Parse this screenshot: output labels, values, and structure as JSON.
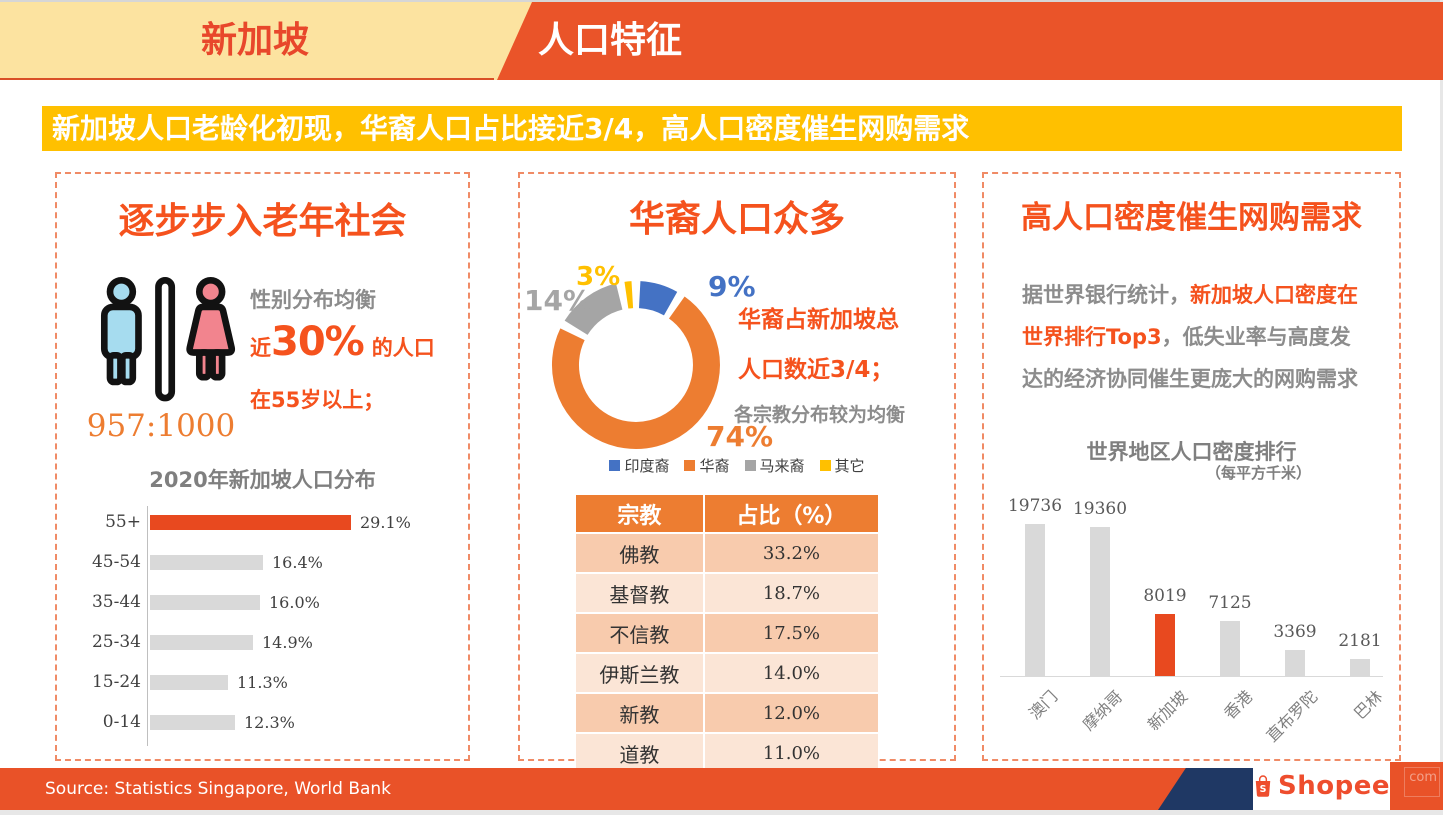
{
  "header": {
    "left_tab": "新加坡",
    "right_tab": "人口特征"
  },
  "banner": {
    "text": "新加坡人口老龄化初现，华裔人口占比接近3/4，高人口密度催生网购需求"
  },
  "panels": {
    "aging": {
      "title": "逐步步入老年社会",
      "gender_ratio": "957:1000",
      "balance_line": "性别分布均衡",
      "pct_prefix": "近",
      "pct_big": "30%",
      "pct_suffix": "的人口",
      "age_line": "在55岁以上；"
    },
    "ethnic": {
      "title": "华裔人口众多",
      "side_line1": "华裔占新加坡总",
      "side_line2": "人口数近3/4；",
      "side_line3": "各宗教分布较为均衡"
    },
    "density": {
      "title": "高人口密度催生网购需求",
      "para_line1_gray": "据世界银行统计，",
      "para_line1_orange": "新加坡人口密度在",
      "para_line2_orange": "世界排行Top3",
      "para_line2_gray": "，低失业率与高度发",
      "para_line3_gray": "达的经济协同催生更庞大的网购需求"
    }
  },
  "footer": {
    "source": "Source: Statistics Singapore, World Bank",
    "brand": "Shopee",
    "watermark": "com"
  },
  "icons": {
    "gender": "male-female-restroom-icons",
    "shopee": "shopee-bag-icon"
  },
  "colors": {
    "accent_orange": "#F5521D",
    "chart_orange": "#E8491F",
    "table_orange": "#ED7D31",
    "gold": "#FFC000",
    "blue": "#4472C4",
    "gray": "#A5A5A5",
    "bar_gray": "#D9D9D9",
    "header_orange": "#EA5429",
    "cream": "#FCE3A0",
    "navy": "#1F3864",
    "shopee_orange": "#EE4D2D"
  },
  "chart_data": [
    {
      "type": "bar",
      "orientation": "horizontal",
      "title": "2020年新加坡人口分布",
      "categories": [
        "55+",
        "45-54",
        "35-44",
        "25-34",
        "15-24",
        "0-14"
      ],
      "values": [
        29.1,
        16.4,
        16.0,
        14.9,
        11.3,
        12.3
      ],
      "value_labels": [
        "29.1%",
        "16.4%",
        "16.0%",
        "14.9%",
        "11.3%",
        "12.3%"
      ],
      "xlim": [
        0,
        30
      ],
      "highlight_index": 0,
      "highlight_color": "#E8491F",
      "bar_color": "#D9D9D9",
      "grid": false,
      "legend": "none"
    },
    {
      "type": "pie",
      "subtype": "donut",
      "labels": [
        "印度裔",
        "华裔",
        "马来裔",
        "其它"
      ],
      "values": [
        9,
        74,
        14,
        3
      ],
      "pct_labels": [
        "9%",
        "74%",
        "14%",
        "3%"
      ],
      "colors": [
        "#4472C4",
        "#ED7D31",
        "#A5A5A5",
        "#FFC000"
      ],
      "legend_position": "bottom",
      "start_angle_deg": 0,
      "direction": "clockwise"
    },
    {
      "type": "bar",
      "orientation": "vertical",
      "title": "世界地区人口密度排行",
      "subtitle": "（每平方千米）",
      "categories": [
        "澳门",
        "摩纳哥",
        "新加坡",
        "香港",
        "直布罗陀",
        "巴林"
      ],
      "values": [
        19736,
        19360,
        8019,
        7125,
        3369,
        2181
      ],
      "ylim": [
        0,
        19736
      ],
      "highlight_index": 2,
      "highlight_color": "#E8491F",
      "bar_color": "#D9D9D9",
      "grid": false,
      "legend": "none"
    },
    {
      "type": "table",
      "headers": [
        "宗教",
        "占比（%）"
      ],
      "rows": [
        [
          "佛教",
          "33.2%"
        ],
        [
          "基督教",
          "18.7%"
        ],
        [
          "不信教",
          "17.5%"
        ],
        [
          "伊斯兰教",
          "14.0%"
        ],
        [
          "新教",
          "12.0%"
        ],
        [
          "道教",
          "11.0%"
        ]
      ]
    }
  ]
}
